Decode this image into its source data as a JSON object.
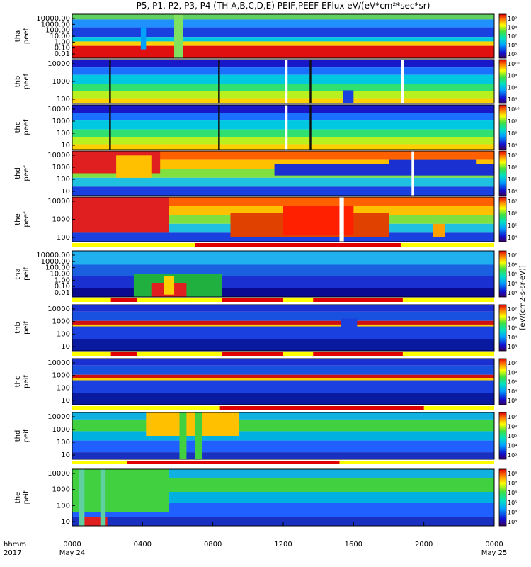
{
  "chart_data": {
    "type": "heatmap",
    "title": "P5, P1, P2, P3, P4 (TH-A,B,C,D,E) PEIF,PEEF EFlux eV/(eV*cm²*sec*sr)",
    "colorbar_label": "[eV/(cm2-s-sr-eV)]",
    "x_label_line1": "hhmm",
    "x_label_line2": "2017",
    "x_range_hours": [
      0,
      24
    ],
    "x_ticks": [
      {
        "hour": 0,
        "label": "0000",
        "sub": "May 24"
      },
      {
        "hour": 4,
        "label": "0400",
        "sub": ""
      },
      {
        "hour": 8,
        "label": "0800",
        "sub": ""
      },
      {
        "hour": 12,
        "label": "1200",
        "sub": ""
      },
      {
        "hour": 16,
        "label": "1600",
        "sub": ""
      },
      {
        "hour": 20,
        "label": "2000",
        "sub": ""
      },
      {
        "hour": 24,
        "label": "0000",
        "sub": "May 25"
      }
    ],
    "panels": [
      {
        "probe": "tha",
        "species": "peef",
        "ylabel": "tha peef",
        "y_ticks": [
          "10000.00",
          "1000.00",
          "100.00",
          "10.00",
          "1.00",
          "0.10",
          "0.01"
        ],
        "cb_ticks": [
          "10⁹",
          "10⁸",
          "10⁷",
          "10⁶",
          "10⁵"
        ],
        "mode_bar": []
      },
      {
        "probe": "thb",
        "species": "peef",
        "ylabel": "thb peef",
        "y_ticks": [
          "10000",
          "1000",
          "100"
        ],
        "cb_ticks": [
          "10¹⁰",
          "10⁸",
          "10⁶",
          "10⁴"
        ],
        "mode_bar": []
      },
      {
        "probe": "thc",
        "species": "peef",
        "ylabel": "thc peef",
        "y_ticks": [
          "10000",
          "1000",
          "100",
          "10"
        ],
        "cb_ticks": [
          "10¹⁰",
          "10⁸",
          "10⁶",
          "10⁴"
        ],
        "mode_bar": []
      },
      {
        "probe": "thd",
        "species": "peef",
        "ylabel": "thd peef",
        "y_ticks": [
          "10000",
          "1000",
          "100",
          "10"
        ],
        "cb_ticks": [
          "10⁷",
          "10⁶",
          "10⁵",
          "10⁴"
        ],
        "mode_bar": []
      },
      {
        "probe": "the",
        "species": "peef",
        "ylabel": "the peef",
        "y_ticks": [
          "10000",
          "1000",
          "100"
        ],
        "cb_ticks": [
          "10⁷",
          "10⁶",
          "10⁵",
          "10⁴"
        ],
        "mode_bar": [
          [
            7.0,
            18.7
          ]
        ]
      },
      {
        "probe": "tha",
        "species": "peif",
        "ylabel": "tha peif",
        "y_ticks": [
          "10000.00",
          "1000.00",
          "100.00",
          "10.00",
          "1.00",
          "0.10",
          "0.01"
        ],
        "cb_ticks": [
          "10⁷",
          "10⁶",
          "10⁵",
          "10⁴",
          "10³"
        ],
        "mode_bar": [
          [
            2.2,
            3.7
          ],
          [
            8.5,
            12.0
          ],
          [
            13.7,
            18.8
          ]
        ]
      },
      {
        "probe": "thb",
        "species": "peif",
        "ylabel": "thb peif",
        "y_ticks": [
          "10000",
          "1000",
          "100",
          "10"
        ],
        "cb_ticks": [
          "10⁷",
          "10⁶",
          "10⁵",
          "10⁴",
          "10³"
        ],
        "mode_bar": [
          [
            2.2,
            3.7
          ],
          [
            8.5,
            12.0
          ],
          [
            13.7,
            18.8
          ]
        ]
      },
      {
        "probe": "thc",
        "species": "peif",
        "ylabel": "thc peif",
        "y_ticks": [
          "10000",
          "1000",
          "100",
          "10"
        ],
        "cb_ticks": [
          "10⁷",
          "10⁶",
          "10⁵",
          "10⁴",
          "10³"
        ],
        "mode_bar": [
          [
            8.4,
            20.0
          ]
        ]
      },
      {
        "probe": "thd",
        "species": "peif",
        "ylabel": "thd peif",
        "y_ticks": [
          "10000",
          "1000",
          "100",
          "10"
        ],
        "cb_ticks": [
          "10⁷",
          "10⁶",
          "10⁵",
          "10⁴",
          "10³"
        ],
        "mode_bar": [
          [
            3.1,
            15.2
          ]
        ]
      },
      {
        "probe": "the",
        "species": "peif",
        "ylabel": "the peif",
        "y_ticks": [
          "10000",
          "1000",
          "100",
          "10"
        ],
        "cb_ticks": [
          "10⁸",
          "10⁷",
          "10⁶",
          "10⁵",
          "10⁴",
          "10³"
        ],
        "mode_bar": []
      }
    ]
  }
}
